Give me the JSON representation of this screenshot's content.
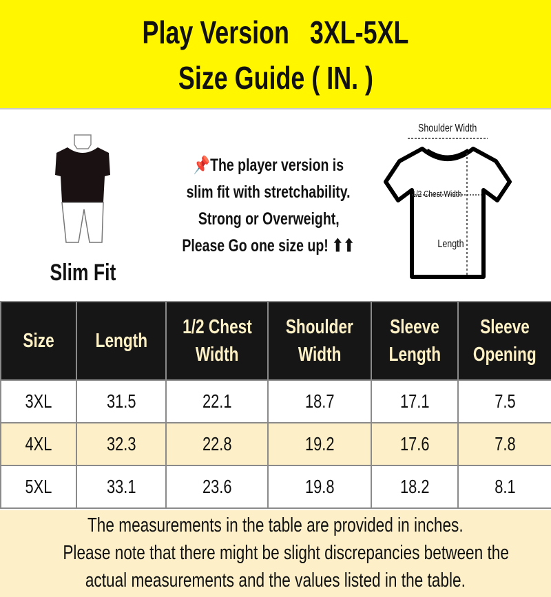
{
  "header": {
    "title_line1": "Play Version   3XL-5XL",
    "title_line2": "Size Guide ( IN. )",
    "background": "#fff600"
  },
  "fit": {
    "label": "Slim Fit",
    "icon": "slim-fit-figure-icon"
  },
  "note": {
    "icon": "pushpin-icon",
    "lines": [
      "The player version is",
      "slim fit with stretchability.",
      "Strong or Overweight,",
      "Please Go one size up! ⬆⬆"
    ]
  },
  "diagram": {
    "shoulder_width": "Shoulder Width",
    "chest_width": "1/2 Chest Width",
    "length": "Length",
    "icon": "t-shirt-diagram-icon"
  },
  "table": {
    "columns": [
      [
        "Size"
      ],
      [
        "Length"
      ],
      [
        "1/2 Chest",
        "Width"
      ],
      [
        "Shoulder",
        "Width"
      ],
      [
        "Sleeve",
        "Length"
      ],
      [
        "Sleeve",
        "Opening"
      ]
    ],
    "rows": [
      [
        "3XL",
        "31.5",
        "22.1",
        "18.7",
        "17.1",
        "7.5"
      ],
      [
        "4XL",
        "32.3",
        "22.8",
        "19.2",
        "17.6",
        "7.8"
      ],
      [
        "5XL",
        "33.1",
        "23.6",
        "19.8",
        "18.2",
        "8.1"
      ]
    ],
    "header_bg": "#161616",
    "header_text": "#fff1c6",
    "alt_row_bg": "#fdf0c9"
  },
  "footer": {
    "lines": [
      "The measurements in the table are provided in inches.",
      "Please note that there might be slight discrepancies between the",
      "actual measurements and the values listed in the table."
    ]
  }
}
